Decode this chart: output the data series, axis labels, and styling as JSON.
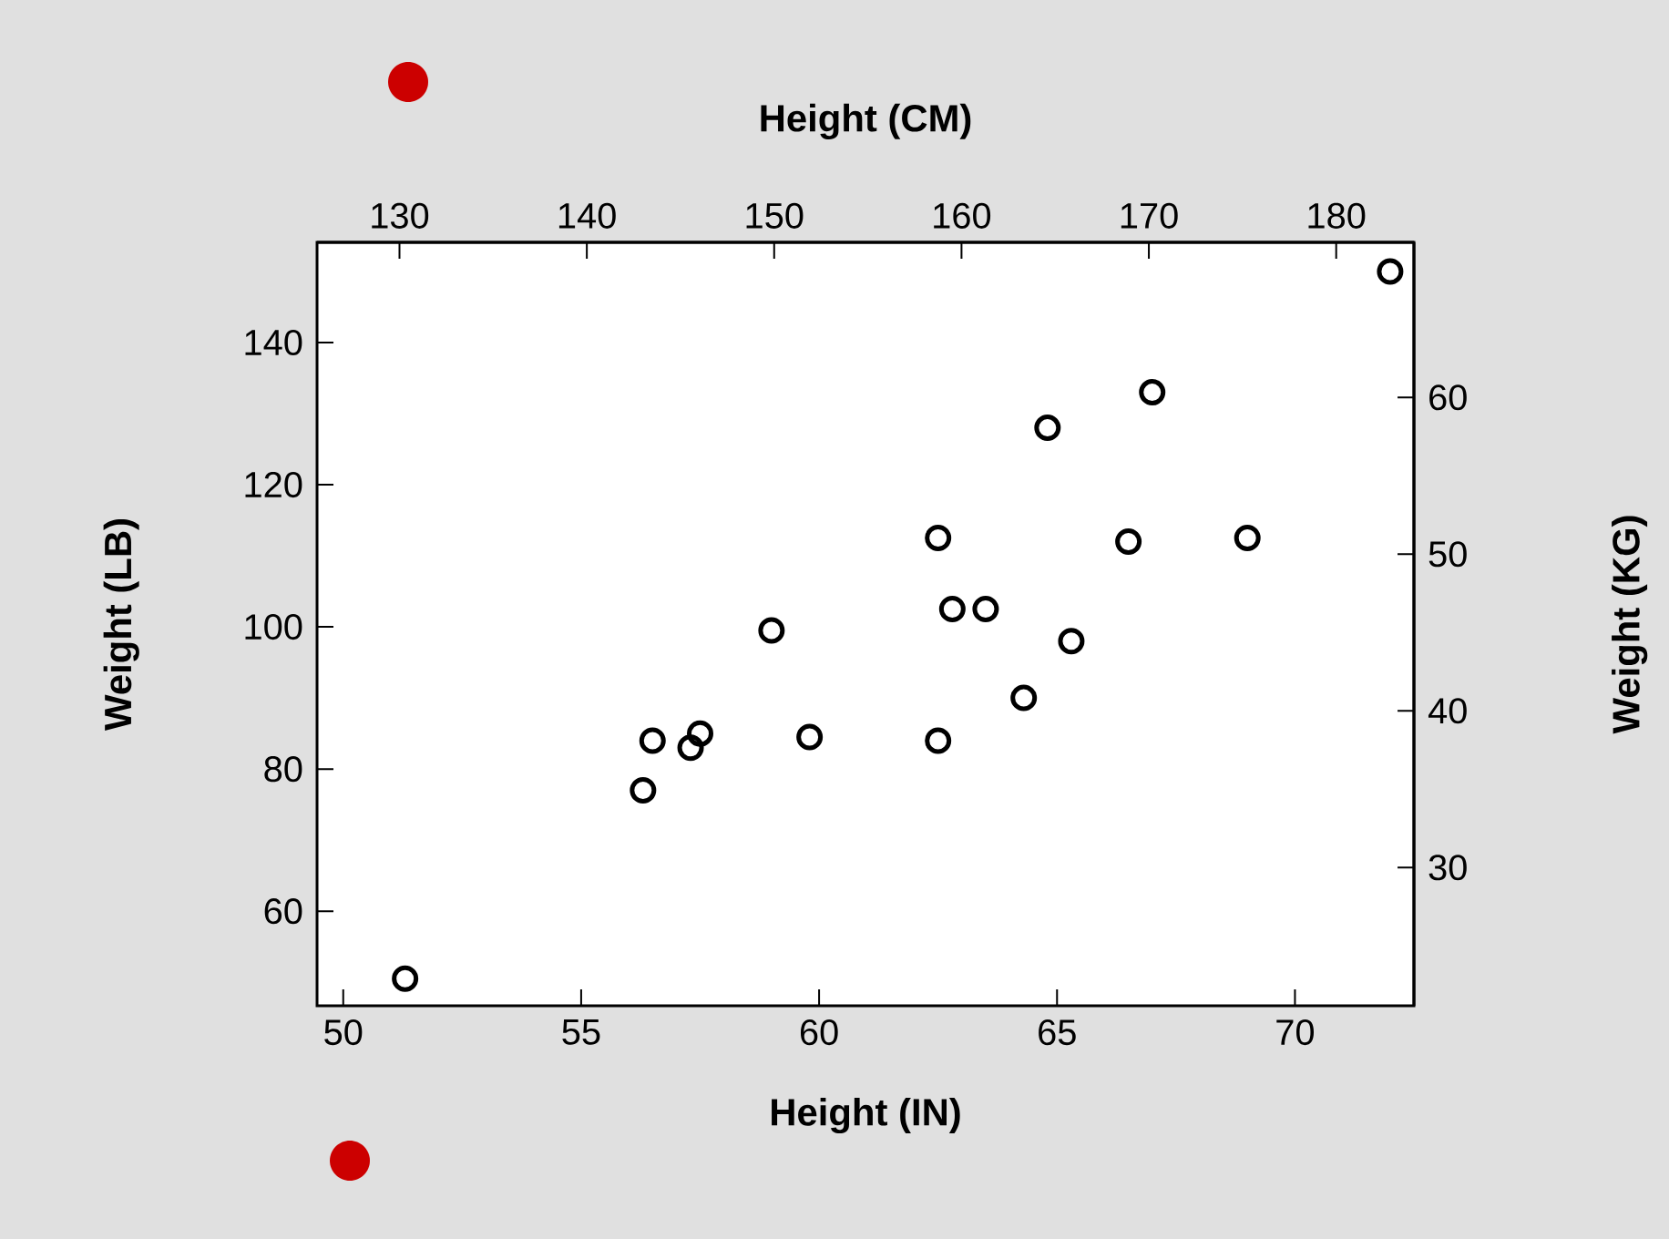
{
  "chart_data": {
    "type": "scatter",
    "xlabel": "Height (IN)",
    "ylabel": "Weight (LB)",
    "x2label": "Height (CM)",
    "y2label": "Weight (KG)",
    "x": [
      51.3,
      56.3,
      56.5,
      57.3,
      57.5,
      59.0,
      59.8,
      62.5,
      62.5,
      62.8,
      63.5,
      64.3,
      64.8,
      65.3,
      66.5,
      67.0,
      69.0,
      72.0
    ],
    "series": [
      {
        "color": "#000000",
        "values": [
          50.5,
          77.0,
          84.0,
          83.0,
          85.0,
          99.5,
          84.5,
          112.5,
          84.0,
          102.5,
          102.5,
          90.0,
          128.0,
          98.0,
          112.0,
          133.0,
          112.5,
          150.0
        ]
      }
    ],
    "xlim": [
      49.45,
      72.5
    ],
    "xticks": [
      50,
      55,
      60,
      65,
      70
    ],
    "ylim": [
      46.7,
      154.1
    ],
    "yticks": [
      60,
      80,
      100,
      120,
      140
    ],
    "x2lim": [
      125.6,
      184.15
    ],
    "x2ticks": [
      130,
      140,
      150,
      160,
      170,
      180
    ],
    "y2lim": [
      21.18,
      69.9
    ],
    "y2ticks": [
      30,
      40,
      50,
      60
    ],
    "marker": "circle"
  }
}
